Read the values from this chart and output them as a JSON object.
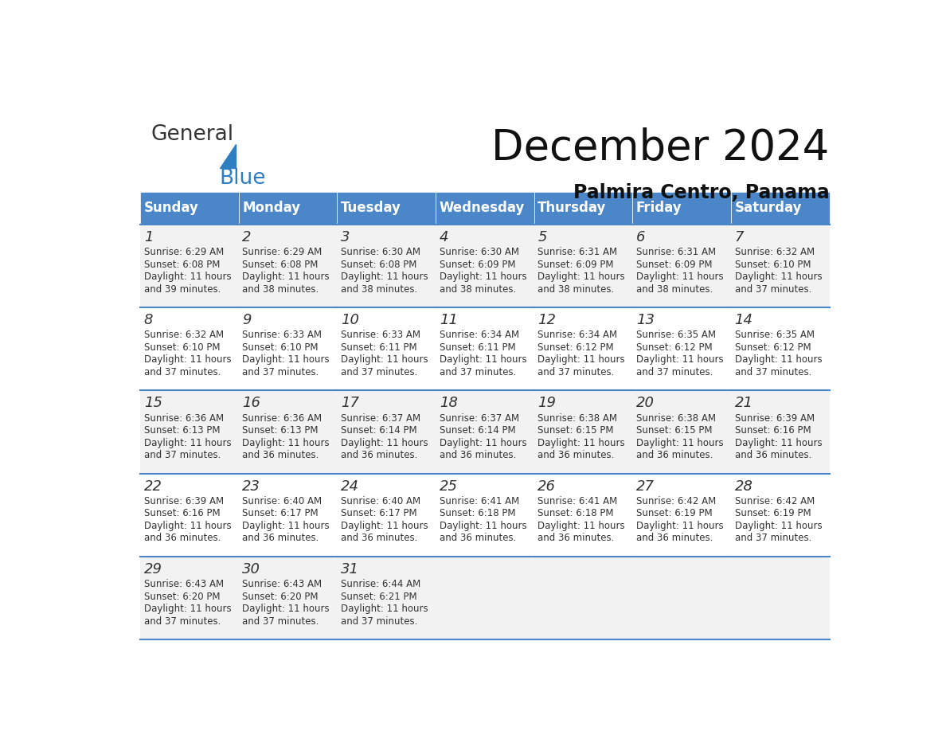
{
  "title": "December 2024",
  "subtitle": "Palmira Centro, Panama",
  "header_color": "#4A86C8",
  "header_text_color": "#FFFFFF",
  "row_bg_colors": [
    "#F2F2F2",
    "#FFFFFF"
  ],
  "border_color": "#4A86C8",
  "text_color": "#333333",
  "days_of_week": [
    "Sunday",
    "Monday",
    "Tuesday",
    "Wednesday",
    "Thursday",
    "Friday",
    "Saturday"
  ],
  "weeks": [
    [
      {
        "day": 1,
        "sunrise": "6:29 AM",
        "sunset": "6:08 PM",
        "daylight_line2": "and 39 minutes."
      },
      {
        "day": 2,
        "sunrise": "6:29 AM",
        "sunset": "6:08 PM",
        "daylight_line2": "and 38 minutes."
      },
      {
        "day": 3,
        "sunrise": "6:30 AM",
        "sunset": "6:08 PM",
        "daylight_line2": "and 38 minutes."
      },
      {
        "day": 4,
        "sunrise": "6:30 AM",
        "sunset": "6:09 PM",
        "daylight_line2": "and 38 minutes."
      },
      {
        "day": 5,
        "sunrise": "6:31 AM",
        "sunset": "6:09 PM",
        "daylight_line2": "and 38 minutes."
      },
      {
        "day": 6,
        "sunrise": "6:31 AM",
        "sunset": "6:09 PM",
        "daylight_line2": "and 38 minutes."
      },
      {
        "day": 7,
        "sunrise": "6:32 AM",
        "sunset": "6:10 PM",
        "daylight_line2": "and 37 minutes."
      }
    ],
    [
      {
        "day": 8,
        "sunrise": "6:32 AM",
        "sunset": "6:10 PM",
        "daylight_line2": "and 37 minutes."
      },
      {
        "day": 9,
        "sunrise": "6:33 AM",
        "sunset": "6:10 PM",
        "daylight_line2": "and 37 minutes."
      },
      {
        "day": 10,
        "sunrise": "6:33 AM",
        "sunset": "6:11 PM",
        "daylight_line2": "and 37 minutes."
      },
      {
        "day": 11,
        "sunrise": "6:34 AM",
        "sunset": "6:11 PM",
        "daylight_line2": "and 37 minutes."
      },
      {
        "day": 12,
        "sunrise": "6:34 AM",
        "sunset": "6:12 PM",
        "daylight_line2": "and 37 minutes."
      },
      {
        "day": 13,
        "sunrise": "6:35 AM",
        "sunset": "6:12 PM",
        "daylight_line2": "and 37 minutes."
      },
      {
        "day": 14,
        "sunrise": "6:35 AM",
        "sunset": "6:12 PM",
        "daylight_line2": "and 37 minutes."
      }
    ],
    [
      {
        "day": 15,
        "sunrise": "6:36 AM",
        "sunset": "6:13 PM",
        "daylight_line2": "and 37 minutes."
      },
      {
        "day": 16,
        "sunrise": "6:36 AM",
        "sunset": "6:13 PM",
        "daylight_line2": "and 36 minutes."
      },
      {
        "day": 17,
        "sunrise": "6:37 AM",
        "sunset": "6:14 PM",
        "daylight_line2": "and 36 minutes."
      },
      {
        "day": 18,
        "sunrise": "6:37 AM",
        "sunset": "6:14 PM",
        "daylight_line2": "and 36 minutes."
      },
      {
        "day": 19,
        "sunrise": "6:38 AM",
        "sunset": "6:15 PM",
        "daylight_line2": "and 36 minutes."
      },
      {
        "day": 20,
        "sunrise": "6:38 AM",
        "sunset": "6:15 PM",
        "daylight_line2": "and 36 minutes."
      },
      {
        "day": 21,
        "sunrise": "6:39 AM",
        "sunset": "6:16 PM",
        "daylight_line2": "and 36 minutes."
      }
    ],
    [
      {
        "day": 22,
        "sunrise": "6:39 AM",
        "sunset": "6:16 PM",
        "daylight_line2": "and 36 minutes."
      },
      {
        "day": 23,
        "sunrise": "6:40 AM",
        "sunset": "6:17 PM",
        "daylight_line2": "and 36 minutes."
      },
      {
        "day": 24,
        "sunrise": "6:40 AM",
        "sunset": "6:17 PM",
        "daylight_line2": "and 36 minutes."
      },
      {
        "day": 25,
        "sunrise": "6:41 AM",
        "sunset": "6:18 PM",
        "daylight_line2": "and 36 minutes."
      },
      {
        "day": 26,
        "sunrise": "6:41 AM",
        "sunset": "6:18 PM",
        "daylight_line2": "and 36 minutes."
      },
      {
        "day": 27,
        "sunrise": "6:42 AM",
        "sunset": "6:19 PM",
        "daylight_line2": "and 36 minutes."
      },
      {
        "day": 28,
        "sunrise": "6:42 AM",
        "sunset": "6:19 PM",
        "daylight_line2": "and 37 minutes."
      }
    ],
    [
      {
        "day": 29,
        "sunrise": "6:43 AM",
        "sunset": "6:20 PM",
        "daylight_line2": "and 37 minutes."
      },
      {
        "day": 30,
        "sunrise": "6:43 AM",
        "sunset": "6:20 PM",
        "daylight_line2": "and 37 minutes."
      },
      {
        "day": 31,
        "sunrise": "6:44 AM",
        "sunset": "6:21 PM",
        "daylight_line2": "and 37 minutes."
      },
      null,
      null,
      null,
      null
    ]
  ],
  "logo_color_general": "#333333",
  "logo_color_blue": "#2E7EC2"
}
